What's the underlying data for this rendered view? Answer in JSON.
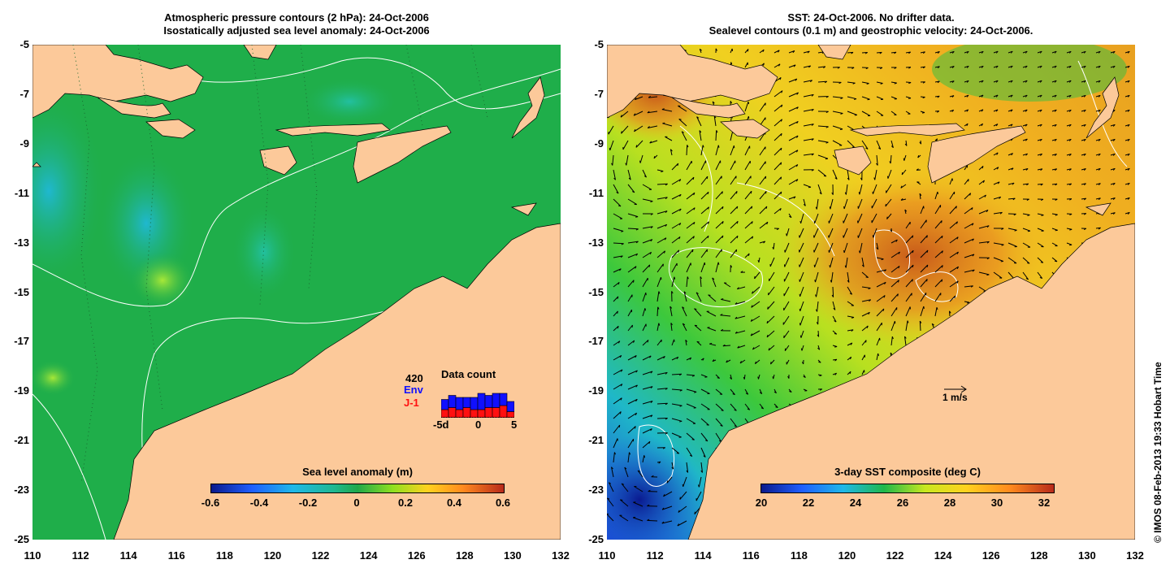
{
  "left_map": {
    "title_line1": "Atmospheric pressure contours (2 hPa): 24-Oct-2006",
    "title_line2": "Isostatically adjusted sea level anomaly: 24-Oct-2006",
    "colorbar": {
      "title": "Sea level anomaly (m)",
      "ticks": [
        "-0.6",
        "-0.4",
        "-0.2",
        "0",
        "0.2",
        "0.4",
        "0.6"
      ],
      "colors": [
        "#0a1a8c",
        "#1f8fff",
        "#1fc8a8",
        "#1fa84a",
        "#8fe01f",
        "#ffd21f",
        "#ff8a1f",
        "#b82a1a"
      ]
    },
    "data_count": {
      "title": "Data count",
      "total": "420",
      "series_env": "Env",
      "series_j1": "J-1",
      "axis_labels": [
        "-5d",
        "0",
        "5"
      ],
      "env_color": "#1010ff",
      "j1_color": "#ff1010",
      "bars_env": [
        5,
        6,
        6,
        5,
        6,
        8,
        6,
        7,
        6,
        5
      ],
      "bars_j1": [
        4,
        5,
        4,
        5,
        4,
        4,
        5,
        5,
        6,
        3
      ]
    }
  },
  "right_map": {
    "title_line1": "SST: 24-Oct-2006. No drifter data.",
    "title_line2": "Sealevel contours (0.1 m) and geostrophic velocity: 24-Oct-2006.",
    "colorbar": {
      "title": "3-day SST composite (deg C)",
      "ticks": [
        "20",
        "22",
        "24",
        "26",
        "28",
        "30",
        "32"
      ],
      "colors": [
        "#0a1a8c",
        "#1f5fff",
        "#1fb8d8",
        "#1fb84a",
        "#c8e81f",
        "#ffd21f",
        "#ff8a1f",
        "#b82a1a"
      ]
    },
    "velocity_scale": "1 m/s"
  },
  "axes": {
    "y_ticks": [
      "-5",
      "-7",
      "-9",
      "-11",
      "-13",
      "-15",
      "-17",
      "-19",
      "-21",
      "-23",
      "-25"
    ],
    "x_ticks": [
      "110",
      "112",
      "114",
      "116",
      "118",
      "120",
      "122",
      "124",
      "126",
      "128",
      "130",
      "132"
    ]
  },
  "credit": "© IMOS 08-Feb-2013 19:33 Hobart Time",
  "colors": {
    "land": "#fcc99a",
    "sea_left": "#1fae4a",
    "sea_right": "#e0e020"
  }
}
